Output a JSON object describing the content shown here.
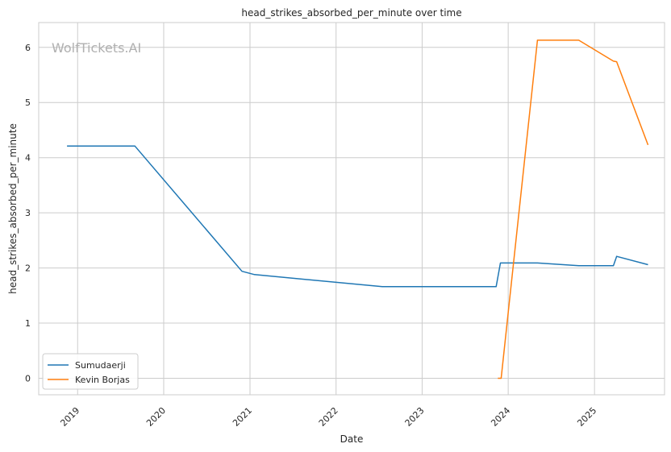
{
  "chart_data": {
    "type": "line",
    "title": "head_strikes_absorbed_per_minute over time",
    "xlabel": "Date",
    "ylabel": "head_strikes_absorbed_per_minute",
    "watermark": "WolfTickets.AI",
    "x_ticks": [
      "2019",
      "2020",
      "2021",
      "2022",
      "2023",
      "2024",
      "2025"
    ],
    "y_ticks": [
      0,
      1,
      2,
      3,
      4,
      5,
      6
    ],
    "xlim": [
      "2018-07-20",
      "2025-10-25"
    ],
    "ylim": [
      -0.3,
      6.45
    ],
    "grid": true,
    "legend_position": "lower-left",
    "series": [
      {
        "name": "Sumudaerji",
        "color": "#1f77b4",
        "points": [
          [
            "2018-11-17",
            4.21
          ],
          [
            "2019-09-01",
            4.21
          ],
          [
            "2020-11-28",
            1.94
          ],
          [
            "2021-01-20",
            1.88
          ],
          [
            "2022-07-16",
            1.66
          ],
          [
            "2023-11-11",
            1.66
          ],
          [
            "2023-11-29",
            2.09
          ],
          [
            "2024-05-04",
            2.09
          ],
          [
            "2024-10-26",
            2.04
          ],
          [
            "2025-03-22",
            2.04
          ],
          [
            "2025-04-05",
            2.21
          ],
          [
            "2025-08-16",
            2.06
          ]
        ]
      },
      {
        "name": "Kevin Borjas",
        "color": "#ff7f0e",
        "points": [
          [
            "2023-11-18",
            0.0
          ],
          [
            "2023-12-02",
            0.0
          ],
          [
            "2024-05-04",
            6.13
          ],
          [
            "2024-10-26",
            6.13
          ],
          [
            "2025-03-22",
            5.75
          ],
          [
            "2025-04-05",
            5.74
          ],
          [
            "2025-08-16",
            4.23
          ]
        ]
      }
    ]
  }
}
